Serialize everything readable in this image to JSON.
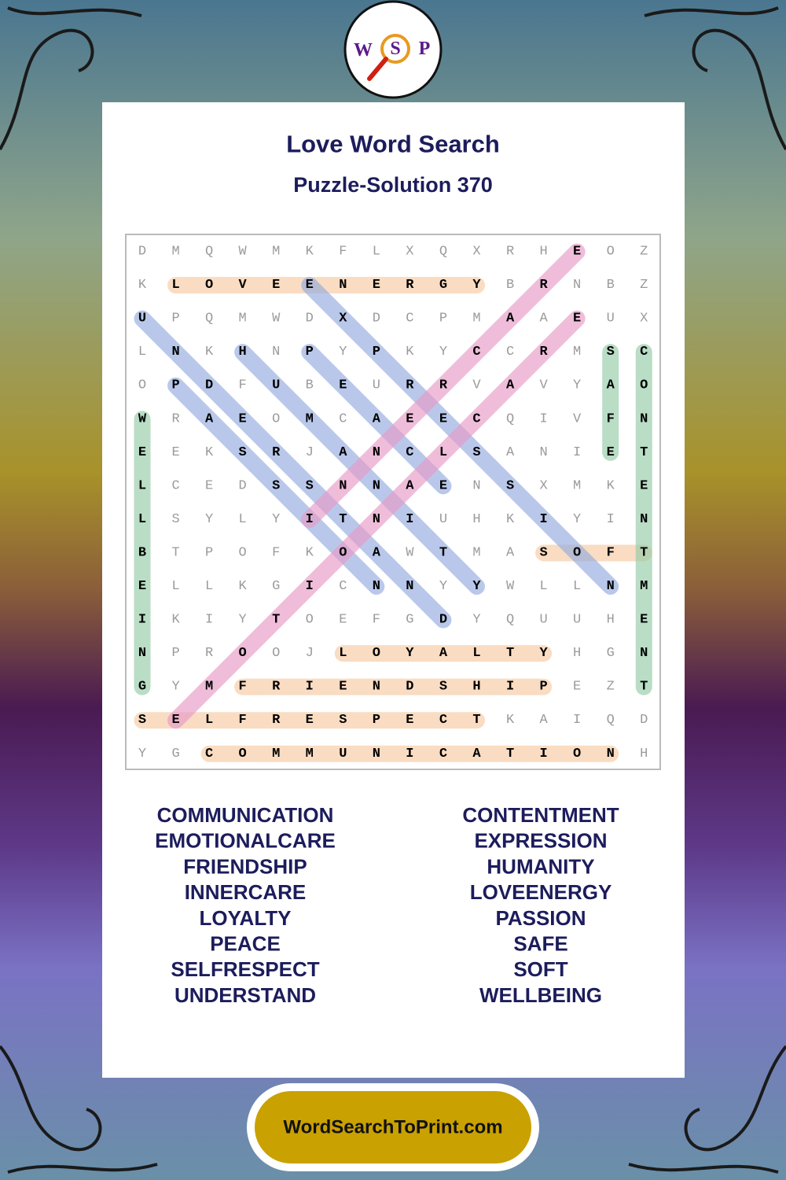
{
  "logo": [
    "W",
    "S",
    "P"
  ],
  "title": "Love Word Search",
  "subtitle": "Puzzle-Solution 370",
  "grid": [
    [
      "D",
      "M",
      "Q",
      "W",
      "M",
      "K",
      "F",
      "L",
      "X",
      "Q",
      "X",
      "R",
      "H",
      "E",
      "O",
      "Z"
    ],
    [
      "K",
      "L",
      "O",
      "V",
      "E",
      "E",
      "N",
      "E",
      "R",
      "G",
      "Y",
      "B",
      "R",
      "N",
      "B",
      "Z"
    ],
    [
      "U",
      "P",
      "Q",
      "M",
      "W",
      "D",
      "X",
      "D",
      "C",
      "P",
      "M",
      "A",
      "A",
      "E",
      "U",
      "X"
    ],
    [
      "L",
      "N",
      "K",
      "H",
      "N",
      "P",
      "Y",
      "P",
      "K",
      "Y",
      "C",
      "C",
      "R",
      "M",
      "S",
      "C"
    ],
    [
      "O",
      "P",
      "D",
      "F",
      "U",
      "B",
      "E",
      "U",
      "R",
      "R",
      "V",
      "A",
      "V",
      "Y",
      "A",
      "O"
    ],
    [
      "W",
      "R",
      "A",
      "E",
      "O",
      "M",
      "C",
      "A",
      "E",
      "E",
      "C",
      "Q",
      "I",
      "V",
      "F",
      "N"
    ],
    [
      "E",
      "E",
      "K",
      "S",
      "R",
      "J",
      "A",
      "N",
      "C",
      "L",
      "S",
      "A",
      "N",
      "I",
      "E",
      "T"
    ],
    [
      "L",
      "C",
      "E",
      "D",
      "S",
      "S",
      "N",
      "N",
      "A",
      "E",
      "N",
      "S",
      "X",
      "M",
      "K",
      "E"
    ],
    [
      "L",
      "S",
      "Y",
      "L",
      "Y",
      "I",
      "T",
      "N",
      "I",
      "U",
      "H",
      "K",
      "I",
      "Y",
      "I",
      "N"
    ],
    [
      "B",
      "T",
      "P",
      "O",
      "F",
      "K",
      "O",
      "A",
      "W",
      "T",
      "M",
      "A",
      "S",
      "O",
      "F",
      "T"
    ],
    [
      "E",
      "L",
      "L",
      "K",
      "G",
      "I",
      "C",
      "N",
      "N",
      "Y",
      "Y",
      "W",
      "L",
      "L",
      "N",
      "M"
    ],
    [
      "I",
      "K",
      "I",
      "Y",
      "T",
      "O",
      "E",
      "F",
      "G",
      "D",
      "Y",
      "Q",
      "U",
      "U",
      "H",
      "E"
    ],
    [
      "N",
      "P",
      "R",
      "O",
      "O",
      "J",
      "L",
      "O",
      "Y",
      "A",
      "L",
      "T",
      "Y",
      "H",
      "G",
      "N"
    ],
    [
      "G",
      "Y",
      "M",
      "F",
      "R",
      "I",
      "E",
      "N",
      "D",
      "S",
      "H",
      "I",
      "P",
      "E",
      "Z",
      "T"
    ],
    [
      "S",
      "E",
      "L",
      "F",
      "R",
      "E",
      "S",
      "P",
      "E",
      "C",
      "T",
      "K",
      "A",
      "I",
      "Q",
      "D"
    ],
    [
      "Y",
      "G",
      "C",
      "O",
      "M",
      "M",
      "U",
      "N",
      "I",
      "C",
      "A",
      "T",
      "I",
      "O",
      "N",
      "H"
    ]
  ],
  "words_left": [
    "COMMUNICATION",
    "EMOTIONALCARE",
    "FRIENDSHIP",
    "INNERCARE",
    "LOYALTY",
    "PEACE",
    "SELFRESPECT",
    "UNDERSTAND"
  ],
  "words_right": [
    "CONTENTMENT",
    "EXPRESSION",
    "HUMANITY",
    "LOVEENERGY",
    "PASSION",
    "SAFE",
    "SOFT",
    "WELLBEING"
  ],
  "footer": "WordSearchToPrint.com"
}
